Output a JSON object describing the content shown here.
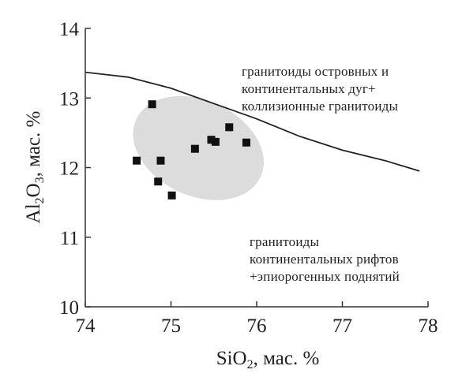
{
  "chart_data": {
    "type": "scatter",
    "xlabel": {
      "pre": "SiO",
      "sub": "2",
      "post": ", мас. %"
    },
    "ylabel": {
      "pre": "Al",
      "sub": "2",
      "mid": "O",
      "sub2": "3",
      "post": ", мас. %"
    },
    "xlim": [
      74,
      78
    ],
    "ylim": [
      10,
      14
    ],
    "x_ticks": [
      74,
      75,
      76,
      77,
      78
    ],
    "y_ticks": [
      10,
      11,
      12,
      13,
      14
    ],
    "grid": false,
    "points": [
      {
        "x": 74.78,
        "y": 12.91
      },
      {
        "x": 74.6,
        "y": 12.1
      },
      {
        "x": 74.88,
        "y": 12.1
      },
      {
        "x": 74.85,
        "y": 11.8
      },
      {
        "x": 75.01,
        "y": 11.6
      },
      {
        "x": 75.28,
        "y": 12.27
      },
      {
        "x": 75.47,
        "y": 12.4
      },
      {
        "x": 75.52,
        "y": 12.37
      },
      {
        "x": 75.68,
        "y": 12.58
      },
      {
        "x": 75.88,
        "y": 12.36
      }
    ],
    "boundary_line": [
      [
        74,
        13.37
      ],
      [
        74.5,
        13.3
      ],
      [
        75,
        13.14
      ],
      [
        75.5,
        12.92
      ],
      [
        76,
        12.7
      ],
      [
        76.5,
        12.45
      ],
      [
        77,
        12.25
      ],
      [
        77.5,
        12.1
      ],
      [
        77.9,
        11.95
      ]
    ],
    "ellipse": {
      "cx": 75.32,
      "cy": 12.28,
      "rx": 0.8,
      "ry": 0.78,
      "rotation_deg": 25,
      "fill": "#dcdcdc"
    },
    "regions": [
      {
        "lines": [
          "гранитоиды островных  и",
          "континентальных дуг+",
          "коллизионные гранитоиды"
        ]
      },
      {
        "lines": [
          "гранитоиды",
          "континентальных рифтов",
          "+эпиорогенных поднятий"
        ]
      }
    ],
    "colors": {
      "axis": "#333333",
      "marker": "#111111",
      "line": "#222222",
      "ellipse": "#dcdcdc"
    }
  }
}
